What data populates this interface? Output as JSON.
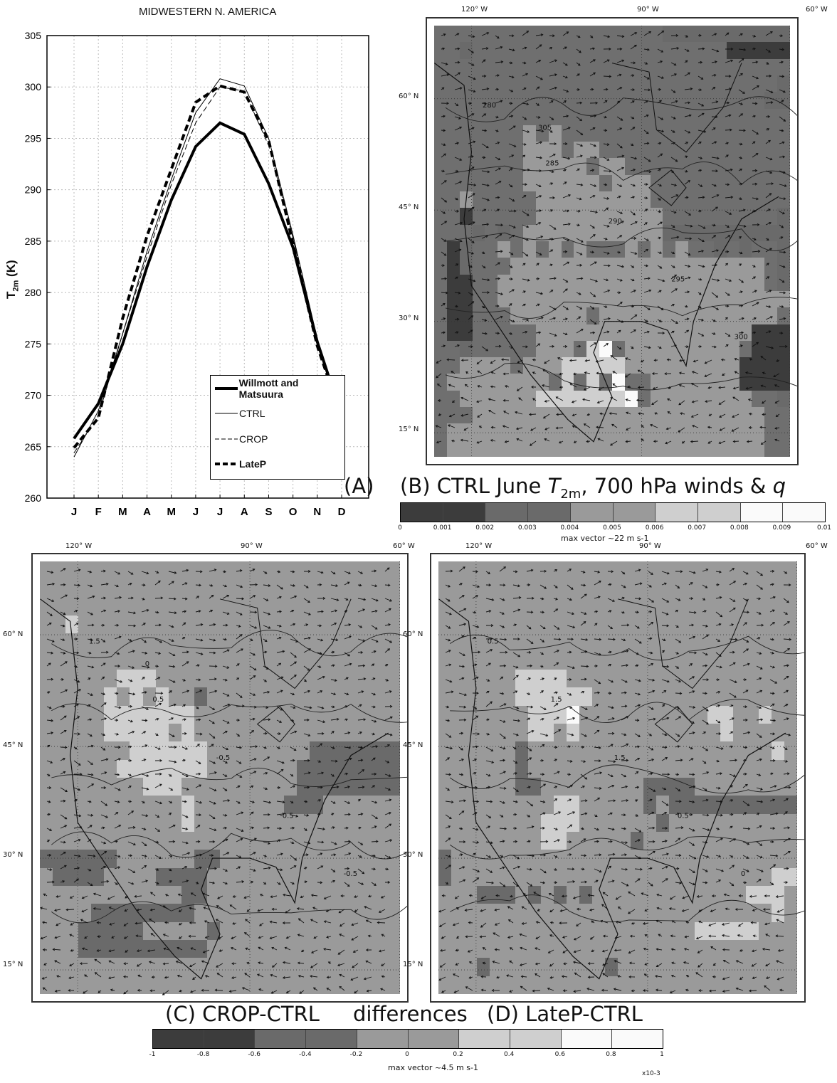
{
  "chart_data": [
    {
      "type": "line",
      "title": "MIDWESTERN N. AMERICA",
      "ylabel": "T2m (K)",
      "ylabel_main": "T",
      "ylabel_sub": "2m",
      "ylabel_unit": "(K)",
      "xlabel": "",
      "categories": [
        "J",
        "F",
        "M",
        "A",
        "M",
        "J",
        "J",
        "A",
        "S",
        "O",
        "N",
        "D"
      ],
      "ylim": [
        260,
        305
      ],
      "yticks": [
        260,
        265,
        270,
        275,
        280,
        285,
        290,
        295,
        300,
        305
      ],
      "grid": true,
      "legend_position": "bottom-right",
      "panel_label": "(A)",
      "series": [
        {
          "name": "Willmott and Matsuura",
          "style": "thick-solid",
          "values": [
            265.8,
            269.2,
            275.0,
            282.5,
            289.0,
            294.2,
            296.5,
            295.4,
            290.6,
            284.4,
            275.2,
            268.0
          ]
        },
        {
          "name": "CTRL",
          "style": "thin-solid",
          "values": [
            264.0,
            268.5,
            276.0,
            284.0,
            291.0,
            297.5,
            300.8,
            300.1,
            295.0,
            285.6,
            275.5,
            267.2
          ]
        },
        {
          "name": "CROP",
          "style": "thin-dashed",
          "values": [
            264.4,
            268.0,
            276.0,
            283.5,
            290.5,
            296.5,
            300.0,
            299.6,
            294.3,
            285.3,
            275.2,
            267.6
          ]
        },
        {
          "name": "LateP",
          "style": "thick-dashed",
          "values": [
            264.9,
            267.8,
            277.5,
            285.5,
            292.0,
            298.5,
            300.1,
            299.5,
            294.8,
            284.8,
            274.8,
            267.8
          ]
        }
      ]
    },
    {
      "type": "heatmap",
      "panel_label": "(B) CTRL June T2m, 700 hPa winds & q",
      "caption_pre": "(B) CTRL June ",
      "caption_var": "T",
      "caption_sub": "2m",
      "caption_post": ", 700 hPa winds & ",
      "caption_q": "q",
      "lon_labels": [
        "120° W",
        "90° W",
        "60° W"
      ],
      "lat_labels": [
        "60° N",
        "45° N",
        "30° N",
        "15° N"
      ],
      "contour_labels": [
        "280",
        "285",
        "290",
        "295",
        "300",
        "305"
      ],
      "colorbar": {
        "ticks": [
          "0",
          "0.001",
          "0.002",
          "0.003",
          "0.004",
          "0.005",
          "0.006",
          "0.007",
          "0.008",
          "0.009",
          "0.01"
        ],
        "colors": [
          "#3c3c3c",
          "#3c3c3c",
          "#6a6a6a",
          "#6a6a6a",
          "#9a9a9a",
          "#9a9a9a",
          "#cfcfcf",
          "#cfcfcf",
          "#fafafa",
          "#fafafa"
        ],
        "note": "max vector ~22 m s-1"
      }
    },
    {
      "type": "heatmap",
      "panel_label": "(C) CROP-CTRL",
      "lon_labels": [
        "120° W",
        "90° W",
        "60° W"
      ],
      "lat_labels": [
        "60° N",
        "45° N",
        "30° N",
        "15° N"
      ],
      "contour_labels": [
        "1.5",
        "0.5",
        "-0.5",
        "-0.5",
        "-0.5",
        "0"
      ]
    },
    {
      "type": "heatmap",
      "panel_label": "(D) LateP-CTRL",
      "lon_labels": [
        "120° W",
        "90° W",
        "60° W"
      ],
      "lat_labels": [
        "60° N",
        "45° N",
        "30° N",
        "15° N"
      ],
      "contour_labels": [
        "0.5",
        "1.5",
        "1.5",
        "0.5",
        "0"
      ]
    }
  ],
  "shared_caption": {
    "c": "(C) CROP-CTRL",
    "middle": "differences",
    "d": "(D) LateP-CTRL"
  },
  "diff_colorbar": {
    "ticks": [
      "-1",
      "-0.8",
      "-0.6",
      "-0.4",
      "-0.2",
      "0",
      "0.2",
      "0.4",
      "0.6",
      "0.8",
      "1"
    ],
    "colors": [
      "#3c3c3c",
      "#3c3c3c",
      "#6a6a6a",
      "#6a6a6a",
      "#9a9a9a",
      "#9a9a9a",
      "#cfcfcf",
      "#cfcfcf",
      "#fafafa",
      "#fafafa"
    ],
    "note": "max vector ~4.5 m s-1",
    "scale": "x10-3"
  }
}
